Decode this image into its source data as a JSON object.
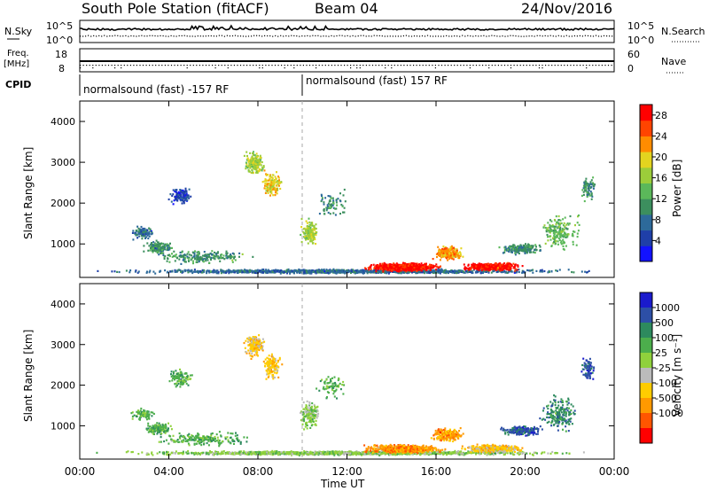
{
  "header": {
    "station": "South Pole Station (fitACF)",
    "beam": "Beam 04",
    "date": "24/Nov/2016"
  },
  "top_panels": {
    "nsky_label": "N.Sky",
    "nsky_tick_top": "10^5",
    "nsky_tick_bottom": "10^0",
    "nsearch_label": "N.Search",
    "nsearch_tick_top": "10^5",
    "nsearch_tick_bottom": "10^0",
    "freq_label": "Freq.",
    "freq_unit": "[MHz]",
    "freq_tick_top": "18",
    "freq_tick_bottom": "8",
    "nave_label": "Nave",
    "nave_tick_top": "60",
    "nave_tick_bottom": "0",
    "cpid_label": "CPID",
    "cpid_left": "normalsound (fast) -157 RF",
    "cpid_right": "normalsound (fast) 157 RF"
  },
  "colors": {
    "power_scale": [
      "#1212ff",
      "#1f3fa8",
      "#2d6a9a",
      "#3c8f5e",
      "#5bb85a",
      "#9ccd3a",
      "#e3d41f",
      "#ff8c00",
      "#ff4400",
      "#ff0000"
    ],
    "velocity_scale": [
      "#ff0000",
      "#ff5500",
      "#ff9900",
      "#ffcc00",
      "#bbbbbb",
      "#8fd13c",
      "#4cae4c",
      "#2d8a5e",
      "#2d4fa6",
      "#1a1acc"
    ]
  },
  "chart_data": [
    {
      "type": "heatmap",
      "name_panel": "power",
      "x_label": "Time UT",
      "y_label": "Slant Range [km]",
      "x_range_hours": [
        0,
        24
      ],
      "y_range_km": [
        180,
        4500
      ],
      "y_ticks": [
        "1000",
        "2000",
        "3000",
        "4000"
      ],
      "x_ticks": [
        "00:00",
        "04:00",
        "08:00",
        "12:00",
        "16:00",
        "20:00",
        "00:00"
      ],
      "colorbar_label": "Power [dB]",
      "colorbar_ticks": [
        "4",
        "8",
        "12",
        "16",
        "20",
        "24",
        "28"
      ],
      "colorbar_range": [
        0,
        30
      ]
    },
    {
      "type": "heatmap",
      "name_panel": "velocity",
      "x_label": "Time UT",
      "y_label": "Slant Range [km]",
      "x_range_hours": [
        0,
        24
      ],
      "y_range_km": [
        180,
        4500
      ],
      "y_ticks": [
        "1000",
        "2000",
        "3000",
        "4000"
      ],
      "x_ticks": [
        "00:00",
        "04:00",
        "08:00",
        "12:00",
        "16:00",
        "20:00",
        "00:00"
      ],
      "colorbar_label": "Velocity [m s⁻¹]",
      "colorbar_ticks": [
        "1000",
        "500",
        "100",
        "25",
        "-25",
        "-100",
        "-500",
        "-1000"
      ]
    }
  ]
}
